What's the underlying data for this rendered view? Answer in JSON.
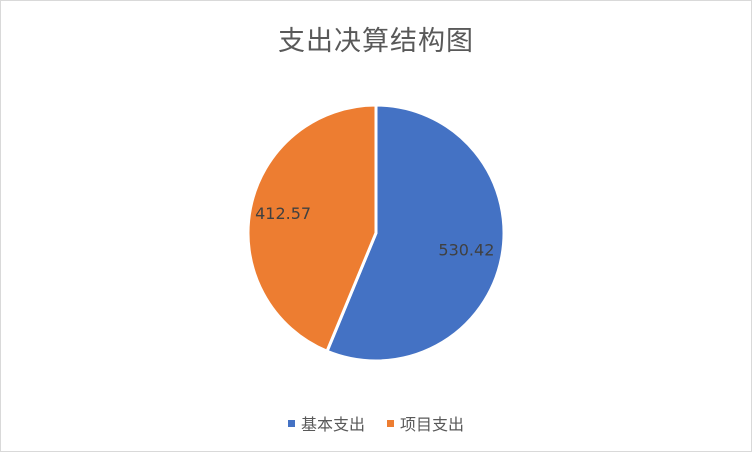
{
  "chart_data": {
    "type": "pie",
    "title": "支出决算结构图",
    "categories": [
      "基本支出",
      "项目支出"
    ],
    "values": [
      530.42,
      412.57
    ],
    "value_labels": [
      "530.42",
      "412.57"
    ],
    "colors": [
      "#4472c4",
      "#ed7d31"
    ],
    "legend_position": "bottom",
    "start_angle_deg": 0,
    "direction": "clockwise"
  }
}
